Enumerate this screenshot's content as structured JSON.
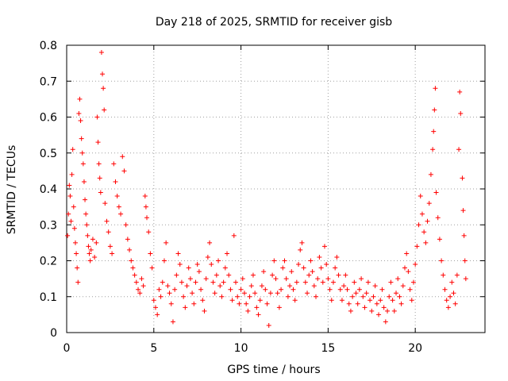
{
  "chart_data": {
    "type": "scatter",
    "title": "Day 218 of 2025, SRMTID for receiver gisb",
    "xlabel": "GPS time / hours",
    "ylabel": "SRMTID / TECUs",
    "xlim": [
      0,
      24
    ],
    "ylim": [
      0,
      0.8
    ],
    "xticks": [
      0,
      5,
      10,
      15,
      20
    ],
    "xtick_labels": [
      "0",
      "5",
      "10",
      "15",
      "20"
    ],
    "yticks": [
      0,
      0.1,
      0.2,
      0.3,
      0.4,
      0.5,
      0.6,
      0.7,
      0.8
    ],
    "ytick_labels": [
      "0",
      "0.1",
      "0.2",
      "0.3",
      "0.4",
      "0.5",
      "0.6",
      "0.7",
      "0.8"
    ],
    "grid": true,
    "marker": "+",
    "color": "#ff0000",
    "series": [
      {
        "name": "SRMTID",
        "points": [
          [
            0.05,
            0.27
          ],
          [
            0.1,
            0.33
          ],
          [
            0.15,
            0.41
          ],
          [
            0.2,
            0.38
          ],
          [
            0.25,
            0.31
          ],
          [
            0.3,
            0.44
          ],
          [
            0.35,
            0.51
          ],
          [
            0.4,
            0.35
          ],
          [
            0.45,
            0.29
          ],
          [
            0.5,
            0.25
          ],
          [
            0.55,
            0.22
          ],
          [
            0.6,
            0.18
          ],
          [
            0.65,
            0.14
          ],
          [
            0.7,
            0.61
          ],
          [
            0.75,
            0.65
          ],
          [
            0.8,
            0.59
          ],
          [
            0.85,
            0.54
          ],
          [
            0.9,
            0.5
          ],
          [
            0.95,
            0.47
          ],
          [
            1.0,
            0.42
          ],
          [
            1.05,
            0.37
          ],
          [
            1.1,
            0.33
          ],
          [
            1.15,
            0.3
          ],
          [
            1.2,
            0.27
          ],
          [
            1.25,
            0.24
          ],
          [
            1.3,
            0.22
          ],
          [
            1.35,
            0.2
          ],
          [
            1.4,
            0.23
          ],
          [
            1.5,
            0.26
          ],
          [
            1.6,
            0.21
          ],
          [
            1.7,
            0.25
          ],
          [
            1.75,
            0.6
          ],
          [
            1.8,
            0.53
          ],
          [
            1.85,
            0.47
          ],
          [
            1.9,
            0.43
          ],
          [
            1.95,
            0.39
          ],
          [
            2.0,
            0.78
          ],
          [
            2.05,
            0.72
          ],
          [
            2.1,
            0.68
          ],
          [
            2.15,
            0.62
          ],
          [
            2.2,
            0.36
          ],
          [
            2.3,
            0.31
          ],
          [
            2.4,
            0.28
          ],
          [
            2.5,
            0.24
          ],
          [
            2.6,
            0.22
          ],
          [
            2.7,
            0.47
          ],
          [
            2.8,
            0.42
          ],
          [
            2.9,
            0.38
          ],
          [
            3.0,
            0.35
          ],
          [
            3.1,
            0.33
          ],
          [
            3.2,
            0.49
          ],
          [
            3.3,
            0.45
          ],
          [
            3.4,
            0.3
          ],
          [
            3.5,
            0.26
          ],
          [
            3.6,
            0.23
          ],
          [
            3.7,
            0.2
          ],
          [
            3.8,
            0.18
          ],
          [
            3.9,
            0.16
          ],
          [
            4.0,
            0.14
          ],
          [
            4.1,
            0.12
          ],
          [
            4.2,
            0.11
          ],
          [
            4.3,
            0.15
          ],
          [
            4.4,
            0.13
          ],
          [
            4.5,
            0.38
          ],
          [
            4.55,
            0.35
          ],
          [
            4.6,
            0.32
          ],
          [
            4.7,
            0.28
          ],
          [
            4.8,
            0.22
          ],
          [
            4.9,
            0.18
          ],
          [
            5.0,
            0.09
          ],
          [
            5.1,
            0.07
          ],
          [
            5.2,
            0.05
          ],
          [
            5.3,
            0.12
          ],
          [
            5.4,
            0.1
          ],
          [
            5.5,
            0.14
          ],
          [
            5.6,
            0.2
          ],
          [
            5.7,
            0.25
          ],
          [
            5.8,
            0.13
          ],
          [
            5.9,
            0.11
          ],
          [
            6.0,
            0.08
          ],
          [
            6.1,
            0.03
          ],
          [
            6.2,
            0.12
          ],
          [
            6.3,
            0.16
          ],
          [
            6.4,
            0.22
          ],
          [
            6.5,
            0.19
          ],
          [
            6.6,
            0.14
          ],
          [
            6.7,
            0.1
          ],
          [
            6.8,
            0.07
          ],
          [
            6.9,
            0.13
          ],
          [
            7.0,
            0.18
          ],
          [
            7.1,
            0.15
          ],
          [
            7.2,
            0.11
          ],
          [
            7.3,
            0.08
          ],
          [
            7.4,
            0.14
          ],
          [
            7.5,
            0.19
          ],
          [
            7.6,
            0.17
          ],
          [
            7.7,
            0.12
          ],
          [
            7.8,
            0.09
          ],
          [
            7.9,
            0.06
          ],
          [
            8.0,
            0.15
          ],
          [
            8.1,
            0.21
          ],
          [
            8.2,
            0.25
          ],
          [
            8.3,
            0.19
          ],
          [
            8.4,
            0.14
          ],
          [
            8.5,
            0.11
          ],
          [
            8.6,
            0.16
          ],
          [
            8.7,
            0.2
          ],
          [
            8.8,
            0.13
          ],
          [
            8.9,
            0.1
          ],
          [
            9.0,
            0.14
          ],
          [
            9.1,
            0.18
          ],
          [
            9.2,
            0.22
          ],
          [
            9.3,
            0.16
          ],
          [
            9.4,
            0.12
          ],
          [
            9.5,
            0.09
          ],
          [
            9.6,
            0.27
          ],
          [
            9.7,
            0.14
          ],
          [
            9.8,
            0.1
          ],
          [
            9.9,
            0.08
          ],
          [
            10.0,
            0.12
          ],
          [
            10.1,
            0.15
          ],
          [
            10.2,
            0.11
          ],
          [
            10.3,
            0.08
          ],
          [
            10.4,
            0.06
          ],
          [
            10.5,
            0.1
          ],
          [
            10.6,
            0.13
          ],
          [
            10.7,
            0.16
          ],
          [
            10.8,
            0.11
          ],
          [
            10.9,
            0.07
          ],
          [
            11.0,
            0.05
          ],
          [
            11.1,
            0.09
          ],
          [
            11.2,
            0.13
          ],
          [
            11.3,
            0.17
          ],
          [
            11.4,
            0.12
          ],
          [
            11.5,
            0.08
          ],
          [
            11.6,
            0.02
          ],
          [
            11.7,
            0.11
          ],
          [
            11.8,
            0.16
          ],
          [
            11.9,
            0.2
          ],
          [
            12.0,
            0.15
          ],
          [
            12.1,
            0.11
          ],
          [
            12.2,
            0.07
          ],
          [
            12.3,
            0.12
          ],
          [
            12.4,
            0.18
          ],
          [
            12.5,
            0.2
          ],
          [
            12.6,
            0.15
          ],
          [
            12.7,
            0.1
          ],
          [
            12.8,
            0.13
          ],
          [
            12.9,
            0.17
          ],
          [
            13.0,
            0.12
          ],
          [
            13.1,
            0.09
          ],
          [
            13.2,
            0.14
          ],
          [
            13.3,
            0.19
          ],
          [
            13.4,
            0.23
          ],
          [
            13.5,
            0.25
          ],
          [
            13.6,
            0.18
          ],
          [
            13.7,
            0.14
          ],
          [
            13.8,
            0.11
          ],
          [
            13.9,
            0.16
          ],
          [
            14.0,
            0.2
          ],
          [
            14.1,
            0.17
          ],
          [
            14.2,
            0.13
          ],
          [
            14.3,
            0.1
          ],
          [
            14.4,
            0.15
          ],
          [
            14.5,
            0.21
          ],
          [
            14.6,
            0.18
          ],
          [
            14.7,
            0.14
          ],
          [
            14.8,
            0.24
          ],
          [
            14.9,
            0.19
          ],
          [
            15.0,
            0.15
          ],
          [
            15.1,
            0.12
          ],
          [
            15.2,
            0.09
          ],
          [
            15.3,
            0.14
          ],
          [
            15.4,
            0.18
          ],
          [
            15.5,
            0.21
          ],
          [
            15.6,
            0.16
          ],
          [
            15.7,
            0.12
          ],
          [
            15.8,
            0.09
          ],
          [
            15.9,
            0.13
          ],
          [
            16.0,
            0.16
          ],
          [
            16.1,
            0.12
          ],
          [
            16.2,
            0.08
          ],
          [
            16.3,
            0.06
          ],
          [
            16.4,
            0.1
          ],
          [
            16.5,
            0.14
          ],
          [
            16.6,
            0.11
          ],
          [
            16.7,
            0.08
          ],
          [
            16.8,
            0.12
          ],
          [
            16.9,
            0.15
          ],
          [
            17.0,
            0.1
          ],
          [
            17.1,
            0.07
          ],
          [
            17.2,
            0.11
          ],
          [
            17.3,
            0.14
          ],
          [
            17.4,
            0.09
          ],
          [
            17.5,
            0.06
          ],
          [
            17.6,
            0.1
          ],
          [
            17.7,
            0.13
          ],
          [
            17.8,
            0.08
          ],
          [
            17.9,
            0.05
          ],
          [
            18.0,
            0.09
          ],
          [
            18.1,
            0.12
          ],
          [
            18.2,
            0.07
          ],
          [
            18.3,
            0.03
          ],
          [
            18.4,
            0.06
          ],
          [
            18.5,
            0.1
          ],
          [
            18.6,
            0.14
          ],
          [
            18.7,
            0.09
          ],
          [
            18.8,
            0.06
          ],
          [
            18.9,
            0.11
          ],
          [
            19.0,
            0.15
          ],
          [
            19.1,
            0.1
          ],
          [
            19.2,
            0.08
          ],
          [
            19.3,
            0.13
          ],
          [
            19.4,
            0.18
          ],
          [
            19.5,
            0.22
          ],
          [
            19.6,
            0.17
          ],
          [
            19.7,
            0.12
          ],
          [
            19.8,
            0.09
          ],
          [
            19.9,
            0.14
          ],
          [
            20.0,
            0.19
          ],
          [
            20.1,
            0.24
          ],
          [
            20.2,
            0.3
          ],
          [
            20.3,
            0.38
          ],
          [
            20.4,
            0.33
          ],
          [
            20.5,
            0.28
          ],
          [
            20.6,
            0.25
          ],
          [
            20.7,
            0.31
          ],
          [
            20.8,
            0.36
          ],
          [
            20.9,
            0.44
          ],
          [
            21.0,
            0.51
          ],
          [
            21.05,
            0.56
          ],
          [
            21.1,
            0.62
          ],
          [
            21.15,
            0.68
          ],
          [
            21.2,
            0.39
          ],
          [
            21.3,
            0.32
          ],
          [
            21.4,
            0.26
          ],
          [
            21.5,
            0.2
          ],
          [
            21.6,
            0.16
          ],
          [
            21.7,
            0.12
          ],
          [
            21.8,
            0.09
          ],
          [
            21.9,
            0.07
          ],
          [
            22.0,
            0.1
          ],
          [
            22.1,
            0.14
          ],
          [
            22.2,
            0.11
          ],
          [
            22.3,
            0.08
          ],
          [
            22.4,
            0.16
          ],
          [
            22.5,
            0.51
          ],
          [
            22.55,
            0.67
          ],
          [
            22.6,
            0.61
          ],
          [
            22.7,
            0.43
          ],
          [
            22.75,
            0.34
          ],
          [
            22.8,
            0.27
          ],
          [
            22.85,
            0.2
          ],
          [
            22.9,
            0.15
          ]
        ]
      }
    ]
  }
}
